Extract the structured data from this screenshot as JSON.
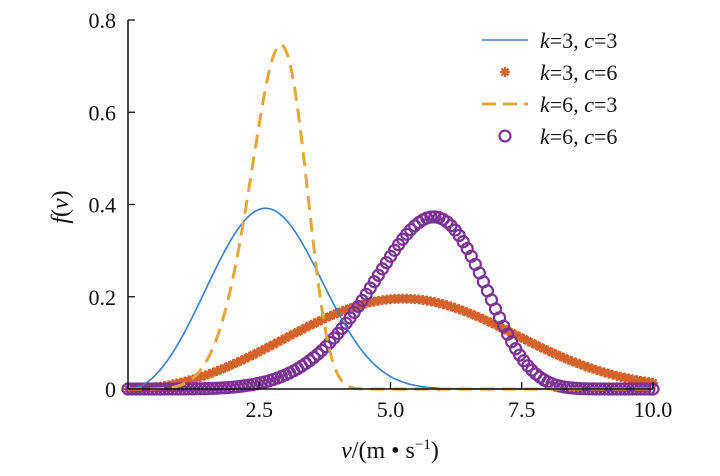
{
  "chart_data": {
    "type": "line",
    "title": "",
    "xlabel_var": "v",
    "xlabel_rest": "/(m • s",
    "xlabel_sup": "−1",
    "xlabel_close": ")",
    "ylabel_f": "f",
    "ylabel_open": "(",
    "ylabel_v": "v",
    "ylabel_close": ")",
    "xlim": [
      0,
      10
    ],
    "ylim": [
      0,
      0.8
    ],
    "x_ticks": [
      2.5,
      5.0,
      7.5,
      10.0
    ],
    "x_tick_labels": [
      "2.5",
      "5.0",
      "7.5",
      "10.0"
    ],
    "y_ticks": [
      0,
      0.2,
      0.4,
      0.6,
      0.8
    ],
    "y_tick_labels": [
      "0",
      "0.2",
      "0.4",
      "0.6",
      "0.8"
    ],
    "grid": false,
    "legend_position": "top-right",
    "series": [
      {
        "name_k": "k",
        "name_kval": "=3, ",
        "name_c": "c",
        "name_cval": "=3",
        "k": 3,
        "c": 3,
        "style": "solid",
        "color": "#3a7fc1"
      },
      {
        "name_k": "k",
        "name_kval": "=3, ",
        "name_c": "c",
        "name_cval": "=6",
        "k": 3,
        "c": 6,
        "style": "asterisk",
        "color": "#d5622a"
      },
      {
        "name_k": "k",
        "name_kval": "=6, ",
        "name_c": "c",
        "name_cval": "=3",
        "k": 6,
        "c": 3,
        "style": "dashed",
        "color": "#e0a83c"
      },
      {
        "name_k": "k",
        "name_kval": "=6, ",
        "name_c": "c",
        "name_cval": "=6",
        "k": 6,
        "c": 6,
        "style": "circle",
        "color": "#7b3294"
      }
    ]
  }
}
